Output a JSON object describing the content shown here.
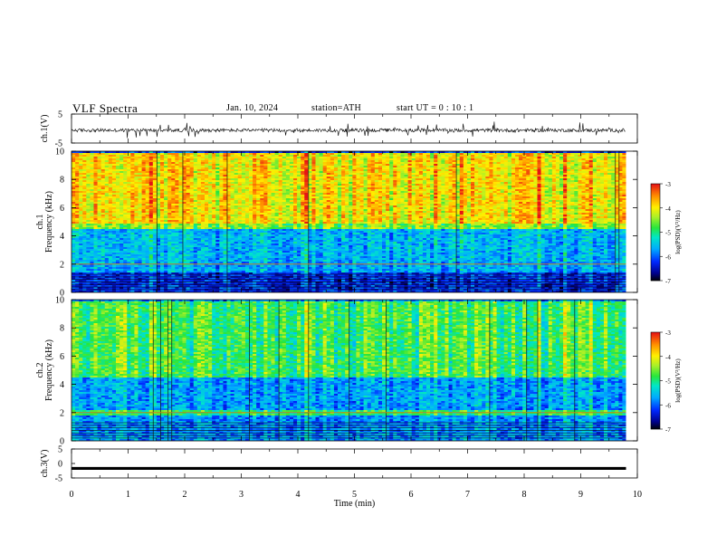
{
  "header": {
    "title": "VLF  Spectra",
    "date": "Jan. 10, 2024",
    "station": "station=ATH",
    "start_ut": "start  UT  =   0  : 10 : 1"
  },
  "chart_data": [
    {
      "type": "line",
      "id": "ch1-waveform",
      "ylabel": "ch.1(V)",
      "ylim": [
        -5,
        5
      ],
      "yticks": [
        "5",
        "-5"
      ],
      "xlim": [
        0,
        10
      ],
      "note_series": "noisy waveform centered slightly below 0 V with spikes to about ±2.5 V"
    },
    {
      "type": "heatmap",
      "id": "ch1-spectrogram",
      "ylabel": "ch.1\nFrequency  (kHz)",
      "ylim": [
        0,
        10
      ],
      "yticks": [
        "0",
        "2",
        "4",
        "6",
        "8",
        "10"
      ],
      "xlim": [
        0,
        9.8
      ],
      "colorbar": {
        "label": "log(PSD)(V²/Hz)",
        "range": [
          -7,
          -3
        ],
        "ticks": [
          "-3",
          "-4",
          "-5",
          "-6",
          "-7"
        ]
      },
      "bands_khz": [
        {
          "from": 0,
          "to": 1.5,
          "level": -6.3
        },
        {
          "from": 1.5,
          "to": 2.2,
          "level": -5.7
        },
        {
          "from": 2.2,
          "to": 4.5,
          "level": -5.6
        },
        {
          "from": 4.5,
          "to": 5.0,
          "level": -4.6
        },
        {
          "from": 5.0,
          "to": 10,
          "level": -4.0
        }
      ]
    },
    {
      "type": "heatmap",
      "id": "ch2-spectrogram",
      "ylabel": "ch.2\nFrequency  (kHz)",
      "ylim": [
        0,
        10
      ],
      "yticks": [
        "0",
        "2",
        "4",
        "6",
        "8",
        "10"
      ],
      "xlim": [
        0,
        9.8
      ],
      "colorbar": {
        "label": "log(PSD)(V²/Hz)",
        "range": [
          -7,
          -3
        ],
        "ticks": [
          "-3",
          "-4",
          "-5",
          "-6",
          "-7"
        ]
      },
      "bands_khz": [
        {
          "from": 0,
          "to": 1.8,
          "level": -5.8
        },
        {
          "from": 1.8,
          "to": 2.3,
          "level": -4.9
        },
        {
          "from": 2.3,
          "to": 4.5,
          "level": -5.7
        },
        {
          "from": 4.5,
          "to": 10,
          "level": -4.8
        }
      ]
    },
    {
      "type": "line",
      "id": "ch3-waveform",
      "ylabel": "ch.3(V)",
      "ylim": [
        -5,
        5
      ],
      "yticks": [
        "5",
        "0",
        "-5"
      ],
      "xlim": [
        0,
        10
      ],
      "note_series": "flat thick line at about -1.7 V"
    }
  ],
  "x_axis": {
    "label": "Time  (min)",
    "ticks": [
      "0",
      "1",
      "2",
      "3",
      "4",
      "5",
      "6",
      "7",
      "8",
      "9",
      "10"
    ]
  },
  "colors": {
    "background": "#ffffff",
    "axis": "#000000"
  }
}
